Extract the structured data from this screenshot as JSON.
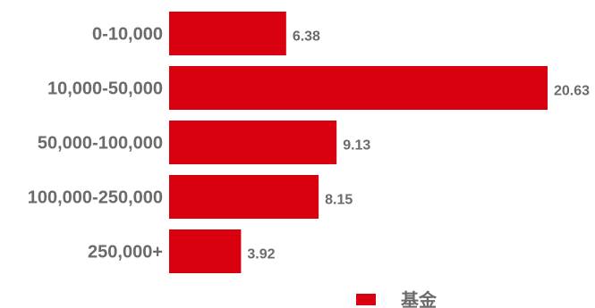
{
  "chart_data": {
    "type": "bar",
    "orientation": "horizontal",
    "categories": [
      "0-10,000",
      "10,000-50,000",
      "50,000-100,000",
      "100,000-250,000",
      "250,000+"
    ],
    "series": [
      {
        "name": "基金",
        "values": [
          6.38,
          20.63,
          9.13,
          8.15,
          3.92
        ],
        "color": "#d9000f"
      }
    ],
    "title": "",
    "xlabel": "",
    "ylabel": "",
    "xlim": [
      0,
      21
    ],
    "grid": false,
    "legend": "bottom-right"
  }
}
